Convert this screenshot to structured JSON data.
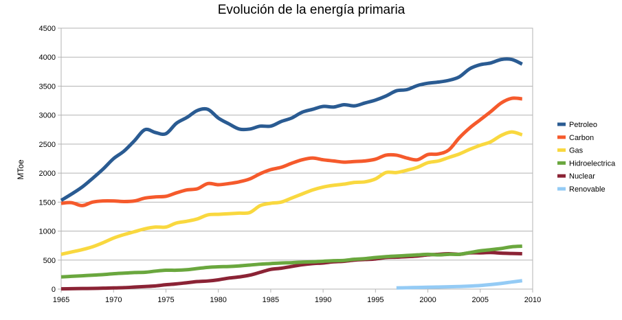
{
  "chart_data": {
    "type": "line",
    "title": "Evolución de la energía primaria",
    "xlabel": "",
    "ylabel": "MToe",
    "xlim": [
      1965,
      2010
    ],
    "ylim": [
      0,
      4500
    ],
    "xticks": [
      1965,
      1970,
      1975,
      1980,
      1985,
      1990,
      1995,
      2000,
      2005,
      2010
    ],
    "yticks": [
      0,
      500,
      1000,
      1500,
      2000,
      2500,
      3000,
      3500,
      4000,
      4500
    ],
    "grid": "horizontal",
    "legend_position": "right",
    "series": [
      {
        "name": "Petroleo",
        "color": "#2a5b92",
        "x": [
          1965,
          1966,
          1967,
          1968,
          1969,
          1970,
          1971,
          1972,
          1973,
          1974,
          1975,
          1976,
          1977,
          1978,
          1979,
          1980,
          1981,
          1982,
          1983,
          1984,
          1985,
          1986,
          1987,
          1988,
          1989,
          1990,
          1991,
          1992,
          1993,
          1994,
          1995,
          1996,
          1997,
          1998,
          1999,
          2000,
          2001,
          2002,
          2003,
          2004,
          2005,
          2006,
          2007,
          2008,
          2009
        ],
        "values": [
          1530,
          1640,
          1760,
          1910,
          2070,
          2250,
          2380,
          2560,
          2750,
          2700,
          2680,
          2860,
          2960,
          3080,
          3100,
          2950,
          2850,
          2760,
          2760,
          2810,
          2810,
          2890,
          2950,
          3050,
          3100,
          3150,
          3140,
          3180,
          3160,
          3210,
          3260,
          3330,
          3420,
          3440,
          3510,
          3550,
          3570,
          3600,
          3660,
          3800,
          3870,
          3900,
          3960,
          3960,
          3880
        ]
      },
      {
        "name": "Carbon",
        "color": "#f55a2c",
        "x": [
          1965,
          1966,
          1967,
          1968,
          1969,
          1970,
          1971,
          1972,
          1973,
          1974,
          1975,
          1976,
          1977,
          1978,
          1979,
          1980,
          1981,
          1982,
          1983,
          1984,
          1985,
          1986,
          1987,
          1988,
          1989,
          1990,
          1991,
          1992,
          1993,
          1994,
          1995,
          1996,
          1997,
          1998,
          1999,
          2000,
          2001,
          2002,
          2003,
          2004,
          2005,
          2006,
          2007,
          2008,
          2009
        ],
        "values": [
          1480,
          1490,
          1440,
          1500,
          1520,
          1520,
          1510,
          1520,
          1570,
          1590,
          1600,
          1660,
          1710,
          1730,
          1820,
          1800,
          1820,
          1850,
          1900,
          1990,
          2060,
          2100,
          2170,
          2230,
          2260,
          2230,
          2210,
          2190,
          2200,
          2210,
          2240,
          2310,
          2310,
          2260,
          2230,
          2320,
          2330,
          2400,
          2610,
          2780,
          2920,
          3060,
          3210,
          3290,
          3280
        ]
      },
      {
        "name": "Gas",
        "color": "#f9d83f",
        "x": [
          1965,
          1966,
          1967,
          1968,
          1969,
          1970,
          1971,
          1972,
          1973,
          1974,
          1975,
          1976,
          1977,
          1978,
          1979,
          1980,
          1981,
          1982,
          1983,
          1984,
          1985,
          1986,
          1987,
          1988,
          1989,
          1990,
          1991,
          1992,
          1993,
          1994,
          1995,
          1996,
          1997,
          1998,
          1999,
          2000,
          2001,
          2002,
          2003,
          2004,
          2005,
          2006,
          2007,
          2008,
          2009
        ],
        "values": [
          600,
          640,
          680,
          730,
          800,
          880,
          940,
          990,
          1040,
          1070,
          1070,
          1140,
          1170,
          1210,
          1280,
          1290,
          1300,
          1310,
          1320,
          1440,
          1480,
          1500,
          1570,
          1640,
          1710,
          1760,
          1790,
          1810,
          1840,
          1850,
          1900,
          2010,
          2010,
          2050,
          2100,
          2180,
          2210,
          2270,
          2330,
          2410,
          2480,
          2540,
          2650,
          2710,
          2660
        ]
      },
      {
        "name": "Hidroelectrica",
        "color": "#6aa73e",
        "x": [
          1965,
          1966,
          1967,
          1968,
          1969,
          1970,
          1971,
          1972,
          1973,
          1974,
          1975,
          1976,
          1977,
          1978,
          1979,
          1980,
          1981,
          1982,
          1983,
          1984,
          1985,
          1986,
          1987,
          1988,
          1989,
          1990,
          1991,
          1992,
          1993,
          1994,
          1995,
          1996,
          1997,
          1998,
          1999,
          2000,
          2001,
          2002,
          2003,
          2004,
          2005,
          2006,
          2007,
          2008,
          2009
        ],
        "values": [
          210,
          220,
          230,
          240,
          250,
          265,
          275,
          285,
          290,
          310,
          325,
          325,
          335,
          355,
          375,
          385,
          390,
          400,
          415,
          430,
          440,
          450,
          455,
          465,
          470,
          480,
          490,
          495,
          515,
          525,
          545,
          560,
          570,
          580,
          590,
          600,
          590,
          600,
          600,
          630,
          660,
          680,
          700,
          730,
          740
        ]
      },
      {
        "name": "Nuclear",
        "color": "#8b2335",
        "x": [
          1965,
          1966,
          1967,
          1968,
          1969,
          1970,
          1971,
          1972,
          1973,
          1974,
          1975,
          1976,
          1977,
          1978,
          1979,
          1980,
          1981,
          1982,
          1983,
          1984,
          1985,
          1986,
          1987,
          1988,
          1989,
          1990,
          1991,
          1992,
          1993,
          1994,
          1995,
          1996,
          1997,
          1998,
          1999,
          2000,
          2001,
          2002,
          2003,
          2004,
          2005,
          2006,
          2007,
          2008,
          2009
        ],
        "values": [
          5,
          7,
          10,
          12,
          16,
          20,
          25,
          35,
          45,
          55,
          75,
          90,
          110,
          130,
          140,
          160,
          190,
          210,
          240,
          290,
          340,
          360,
          390,
          420,
          440,
          450,
          470,
          480,
          500,
          510,
          520,
          545,
          550,
          560,
          570,
          590,
          600,
          610,
          600,
          625,
          625,
          630,
          620,
          615,
          610
        ]
      },
      {
        "name": "Renovable",
        "color": "#94cbf5",
        "x": [
          1997,
          1998,
          1999,
          2000,
          2001,
          2002,
          2003,
          2004,
          2005,
          2006,
          2007,
          2008,
          2009
        ],
        "values": [
          20,
          24,
          28,
          32,
          36,
          40,
          45,
          52,
          62,
          78,
          98,
          122,
          145
        ]
      }
    ]
  }
}
